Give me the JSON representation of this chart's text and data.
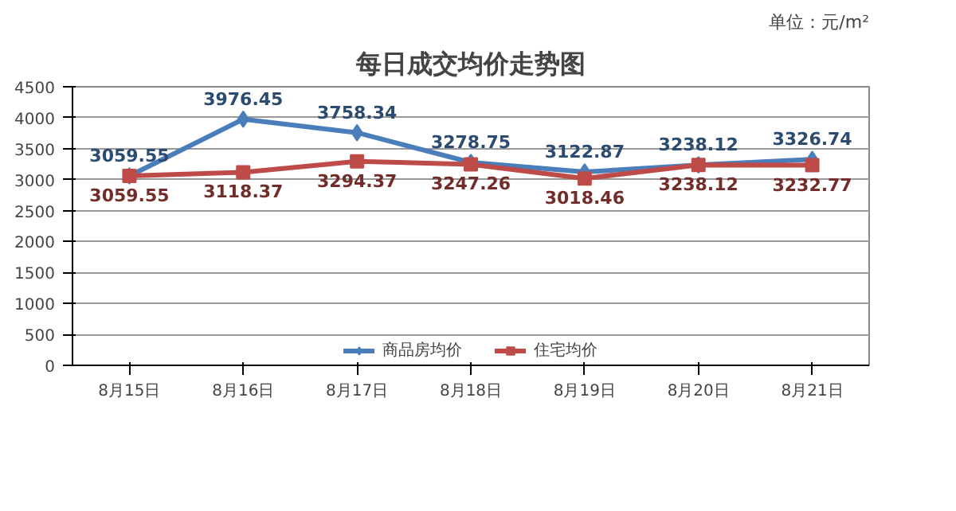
{
  "chart_data": {
    "type": "line",
    "title": "每日成交均价走势图",
    "annotations": [
      "单位：元/m²"
    ],
    "categories": [
      "8月15日",
      "8月16日",
      "8月17日",
      "8月18日",
      "8月19日",
      "8月20日",
      "8月21日"
    ],
    "series": [
      {
        "name": "商品房均价",
        "color": "#4a7ebb",
        "marker": "diamond",
        "values": [
          3059.55,
          3976.45,
          3758.34,
          3278.75,
          3122.87,
          3238.12,
          3326.74
        ],
        "value_labels": [
          "3059.55",
          "3976.45",
          "3758.34",
          "3278.75",
          "3122.87",
          "3238.12",
          "3326.74"
        ]
      },
      {
        "name": "住宅均价",
        "color": "#be4b48",
        "marker": "square",
        "values": [
          3059.55,
          3118.37,
          3294.37,
          3247.26,
          3018.46,
          3238.12,
          3232.77
        ],
        "value_labels": [
          "3059.55",
          "3118.37",
          "3294.37",
          "3247.26",
          "3018.46",
          "3238.12",
          "3232.77"
        ]
      }
    ],
    "ylim": [
      0,
      4500
    ],
    "yticks": [
      0,
      500,
      1000,
      1500,
      2000,
      2500,
      3000,
      3500,
      4000,
      4500
    ],
    "grid": "y",
    "legend": "bottom",
    "line_style": "solid"
  }
}
